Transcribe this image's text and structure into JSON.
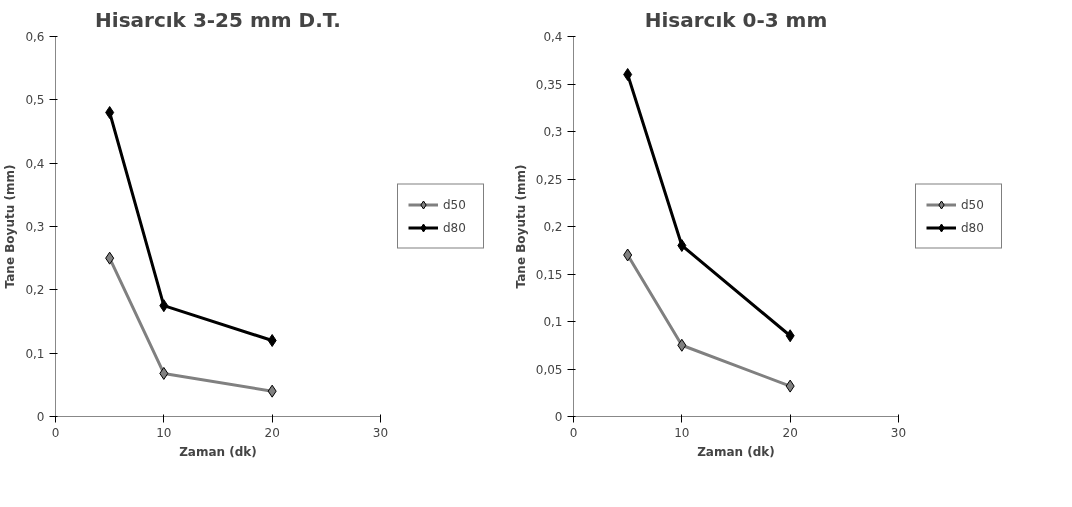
{
  "chart_data": [
    {
      "type": "line",
      "title": "Hisarcık 3-25 mm D.T.",
      "xlabel": "Zaman (dk)",
      "ylabel": "Tane Boyutu (mm)",
      "xlim": [
        0,
        30
      ],
      "xticks": [
        0,
        10,
        20,
        30
      ],
      "ylim": [
        0,
        0.6
      ],
      "yticks": [
        0,
        {
          "value": 0.1,
          "label": "0,1"
        },
        {
          "value": 0.2,
          "label": "0,2"
        },
        {
          "value": 0.3,
          "label": "0,3"
        },
        {
          "value": 0.4,
          "label": "0,4"
        },
        {
          "value": 0.5,
          "label": "0,5"
        },
        {
          "value": 0.6,
          "label": "0,6"
        }
      ],
      "grid": false,
      "legend": "right",
      "marker": "diamond",
      "series": [
        {
          "name": "d50",
          "color": "#808080",
          "x": [
            5,
            10,
            20
          ],
          "values": [
            0.25,
            0.068,
            0.04
          ]
        },
        {
          "name": "d80",
          "color": "#000000",
          "x": [
            5,
            10,
            20
          ],
          "values": [
            0.48,
            0.175,
            0.12
          ]
        }
      ]
    },
    {
      "type": "line",
      "title": "Hisarcık 0-3 mm",
      "xlabel": "Zaman (dk)",
      "ylabel": "Tane Boyutu (mm)",
      "xlim": [
        0,
        30
      ],
      "xticks": [
        0,
        10,
        20,
        30
      ],
      "ylim": [
        0,
        0.4
      ],
      "yticks": [
        0,
        {
          "value": 0.05,
          "label": "0,05"
        },
        {
          "value": 0.1,
          "label": "0,1"
        },
        {
          "value": 0.15,
          "label": "0,15"
        },
        {
          "value": 0.2,
          "label": "0,2"
        },
        {
          "value": 0.25,
          "label": "0,25"
        },
        {
          "value": 0.3,
          "label": "0,3"
        },
        {
          "value": 0.35,
          "label": "0,35"
        },
        {
          "value": 0.4,
          "label": "0,4"
        }
      ],
      "grid": false,
      "legend": "right",
      "marker": "diamond",
      "series": [
        {
          "name": "d50",
          "color": "#808080",
          "x": [
            5,
            10,
            20
          ],
          "values": [
            0.17,
            0.075,
            0.032
          ]
        },
        {
          "name": "d80",
          "color": "#000000",
          "x": [
            5,
            10,
            20
          ],
          "values": [
            0.36,
            0.18,
            0.085
          ]
        }
      ]
    }
  ]
}
